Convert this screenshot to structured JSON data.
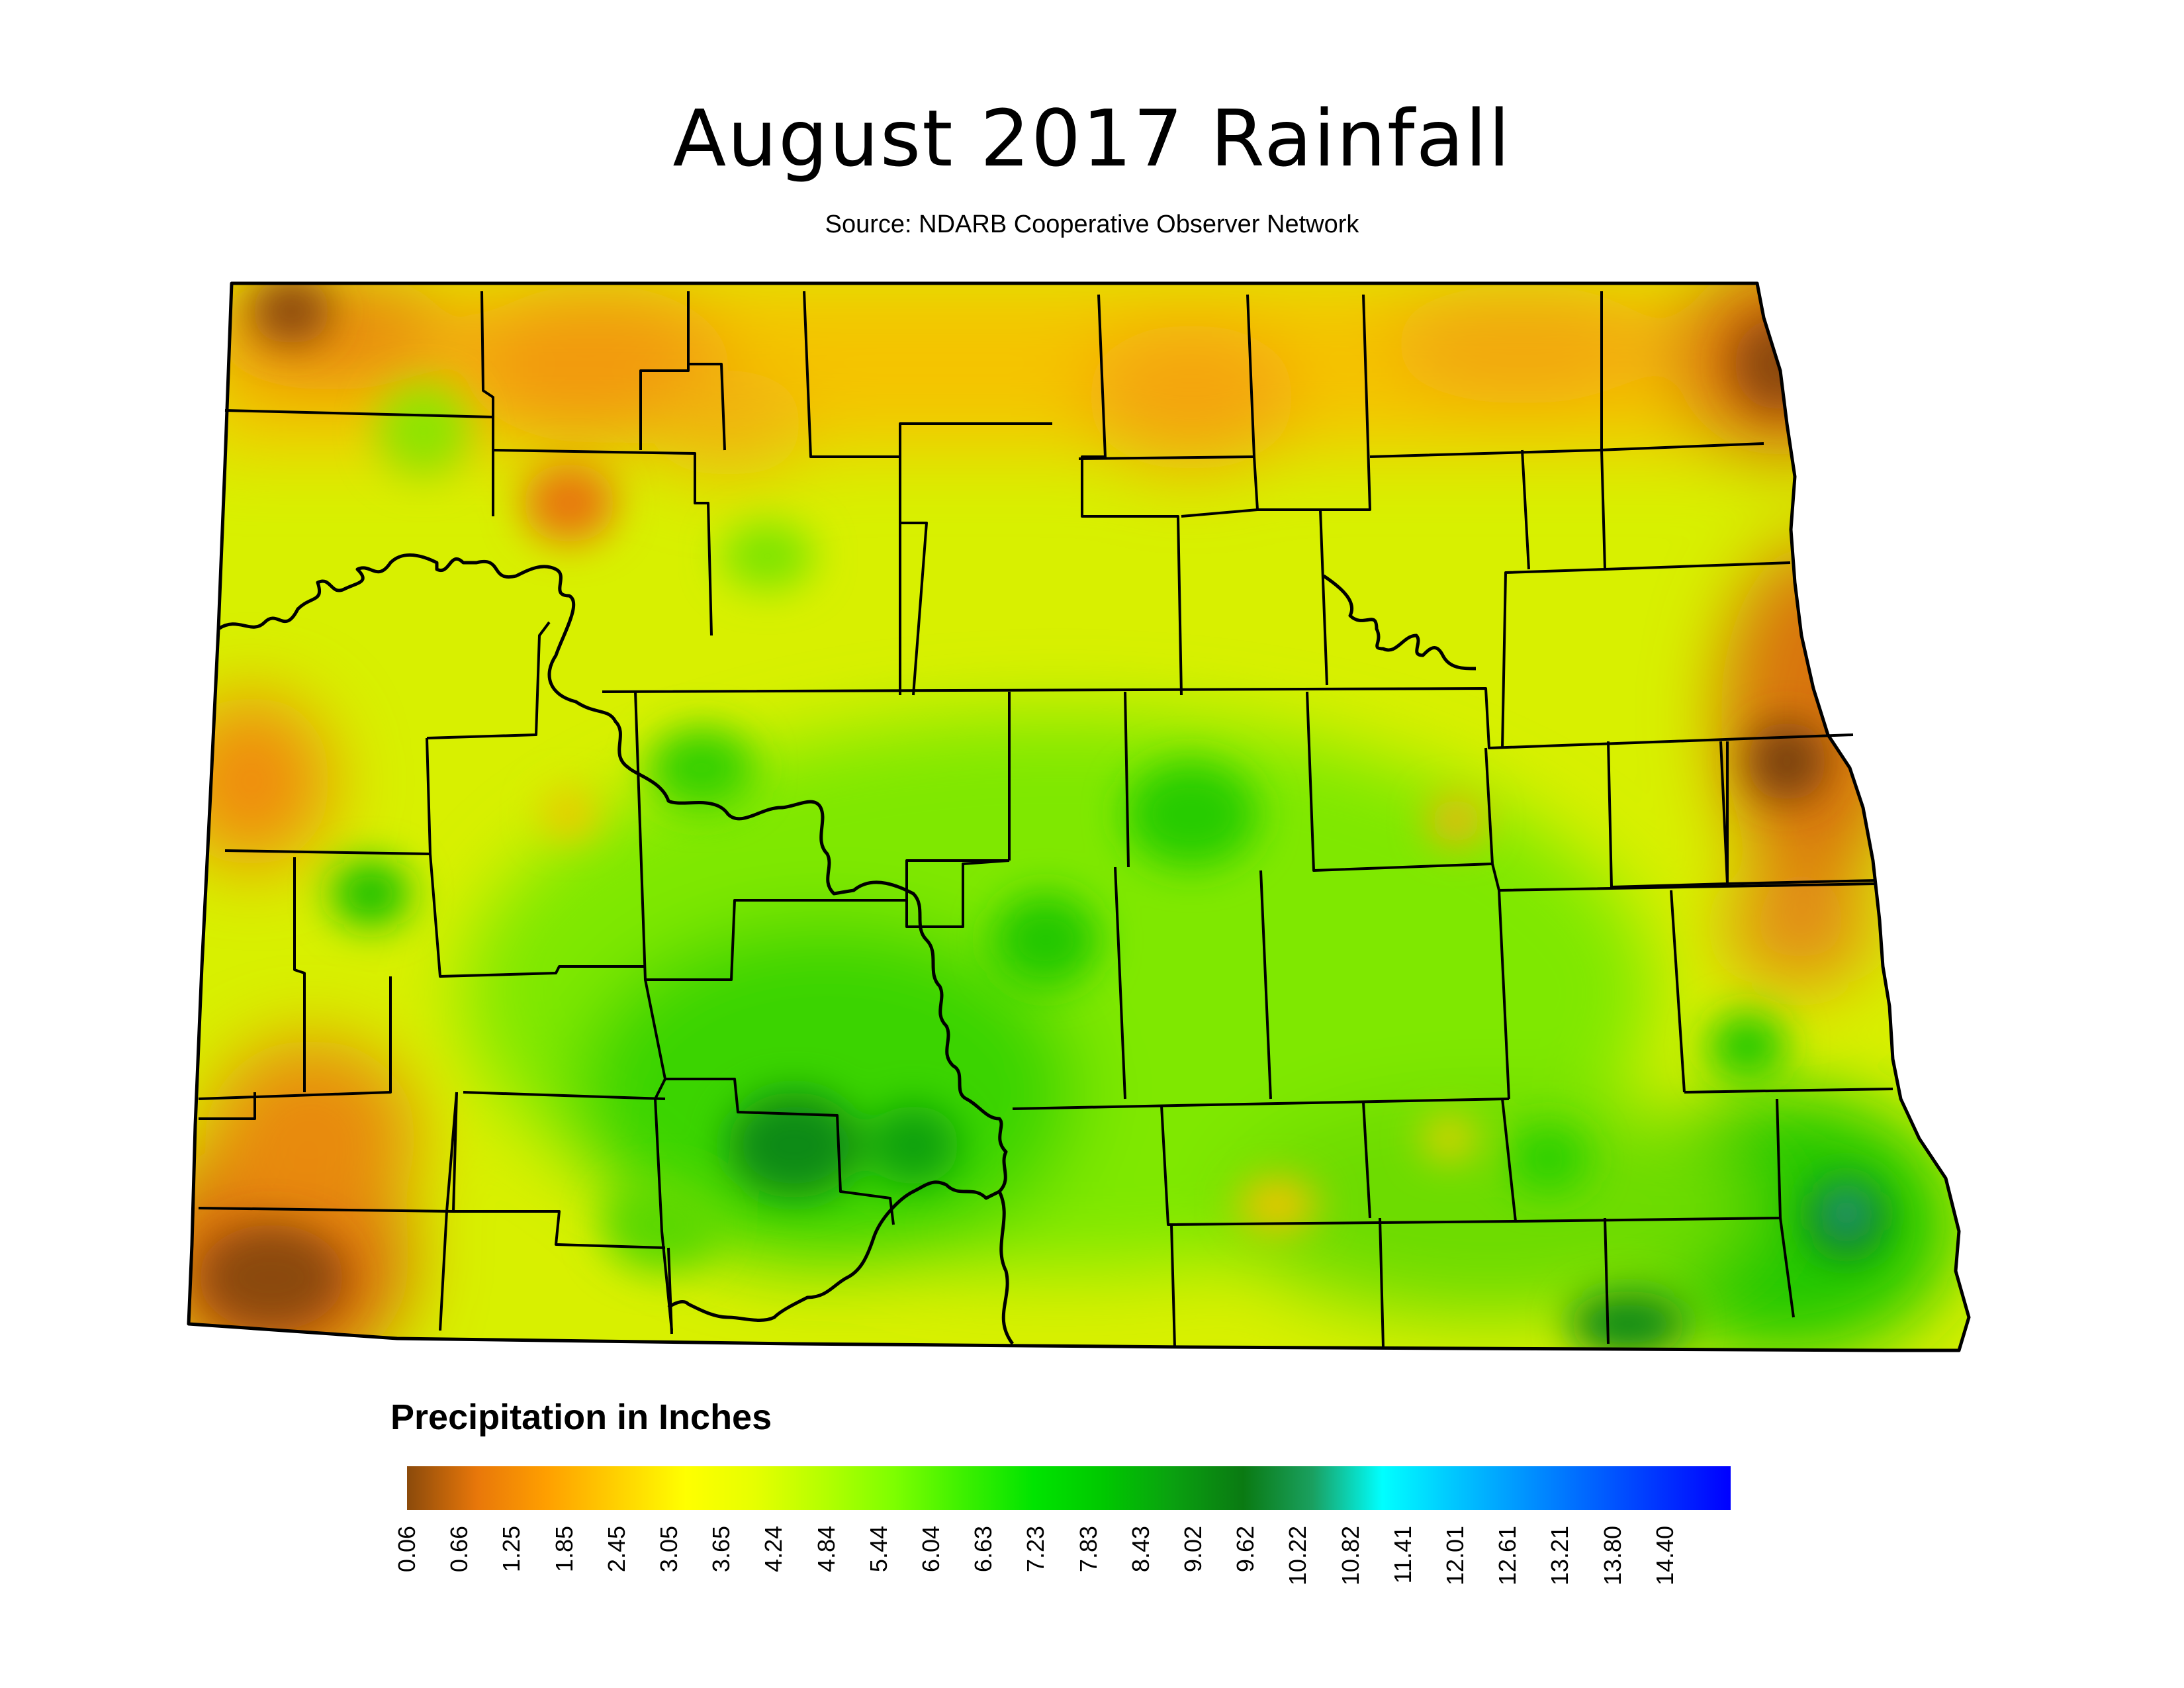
{
  "title": "August 2017 Rainfall",
  "subtitle": "Source: NDARB Cooperative Observer Network",
  "legend": {
    "title": "Precipitation in Inches",
    "ticks": [
      "0.06",
      "0.66",
      "1.25",
      "1.85",
      "2.45",
      "3.05",
      "3.65",
      "4.24",
      "4.84",
      "5.44",
      "6.04",
      "6.63",
      "7.23",
      "7.83",
      "8.43",
      "9.02",
      "9.62",
      "10.22",
      "10.82",
      "11.41",
      "12.01",
      "12.61",
      "13.21",
      "13.80",
      "14.40"
    ],
    "colors": [
      "#8b4a0b",
      "#e8770a",
      "#ff9f00",
      "#ffd000",
      "#ffff00",
      "#e6ff00",
      "#b4ff00",
      "#7dff00",
      "#3cf000",
      "#00e400",
      "#00c800",
      "#0aa010",
      "#0a7a12",
      "#1aa060",
      "#00ffff",
      "#00c8ff",
      "#0096ff",
      "#0064ff",
      "#0032ff",
      "#0000ff"
    ]
  },
  "colors": {
    "border": "#000000",
    "background": "#ffffff"
  }
}
